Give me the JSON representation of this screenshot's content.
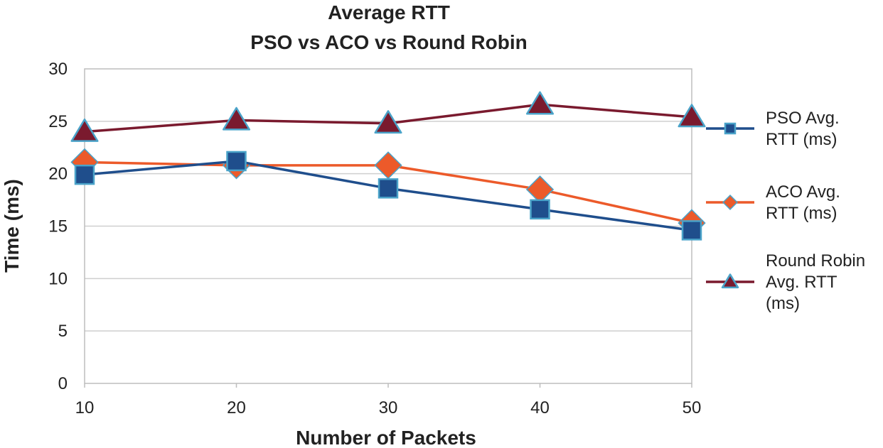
{
  "chart_data": {
    "type": "line",
    "title": "Average RTT",
    "subtitle": "PSO vs ACO vs Round Robin",
    "xlabel": "Number of Packets",
    "ylabel": "Time (ms)",
    "x": [
      10,
      20,
      30,
      40,
      50
    ],
    "xticks": [
      "10",
      "20",
      "30",
      "40",
      "50"
    ],
    "ylim": [
      0,
      30
    ],
    "yticks": [
      "0",
      "5",
      "10",
      "15",
      "20",
      "25",
      "30"
    ],
    "grid": true,
    "legend_position": "right",
    "series": [
      {
        "name": "PSO Avg. RTT (ms)",
        "legend_lines": [
          "PSO Avg.",
          "RTT (ms)"
        ],
        "values": [
          19.9,
          21.2,
          18.6,
          16.6,
          14.6
        ],
        "color": "#1f4e8c",
        "marker": "square"
      },
      {
        "name": "ACO Avg. RTT (ms)",
        "legend_lines": [
          "ACO Avg.",
          "RTT (ms)"
        ],
        "values": [
          21.1,
          20.8,
          20.8,
          18.5,
          15.3
        ],
        "color": "#ec5a2a",
        "marker": "diamond"
      },
      {
        "name": "Round Robin Avg. RTT (ms)",
        "legend_lines": [
          "Round Robin",
          "Avg. RTT",
          "(ms)"
        ],
        "values": [
          24.0,
          25.1,
          24.8,
          26.6,
          25.4
        ],
        "color": "#7a1a2e",
        "marker": "triangle"
      }
    ]
  }
}
